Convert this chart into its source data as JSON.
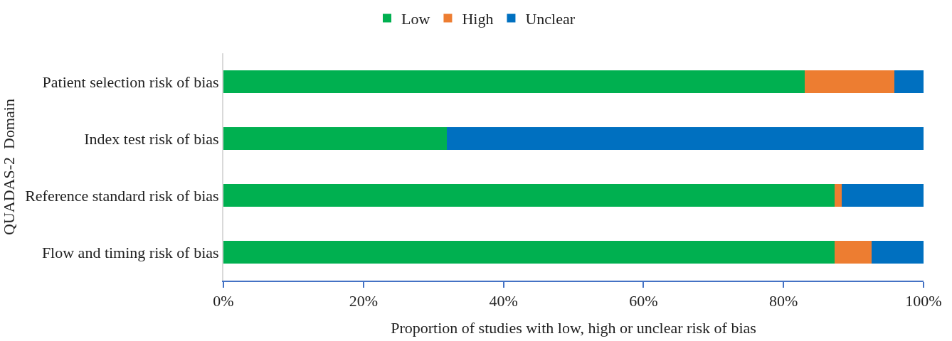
{
  "chart_data": {
    "type": "bar",
    "orientation": "horizontal",
    "stacked": true,
    "categories": [
      "Patient selection risk of bias",
      "Index test risk of bias",
      "Reference standard risk of bias",
      "Flow and timing risk of bias"
    ],
    "series": [
      {
        "name": "Low",
        "color": "#00b050",
        "values": [
          83,
          31.9,
          87.3,
          87.3
        ]
      },
      {
        "name": "High",
        "color": "#ed7d31",
        "values": [
          12.8,
          0,
          1,
          5.3
        ]
      },
      {
        "name": "Unclear",
        "color": "#0070c0",
        "values": [
          4.2,
          68.1,
          11.7,
          7.4
        ]
      }
    ],
    "xlim": [
      0,
      100
    ],
    "xticks": [
      {
        "value": 0,
        "label": "0%"
      },
      {
        "value": 20,
        "label": "20%"
      },
      {
        "value": 40,
        "label": "40%"
      },
      {
        "value": 60,
        "label": "60%"
      },
      {
        "value": 80,
        "label": "80%"
      },
      {
        "value": 100,
        "label": "100%"
      }
    ],
    "xlabel": "Proportion of studies with low, high or unclear risk of bias",
    "ylabel": "QUADAS-2  Domain",
    "legend": "top",
    "grid": false
  }
}
